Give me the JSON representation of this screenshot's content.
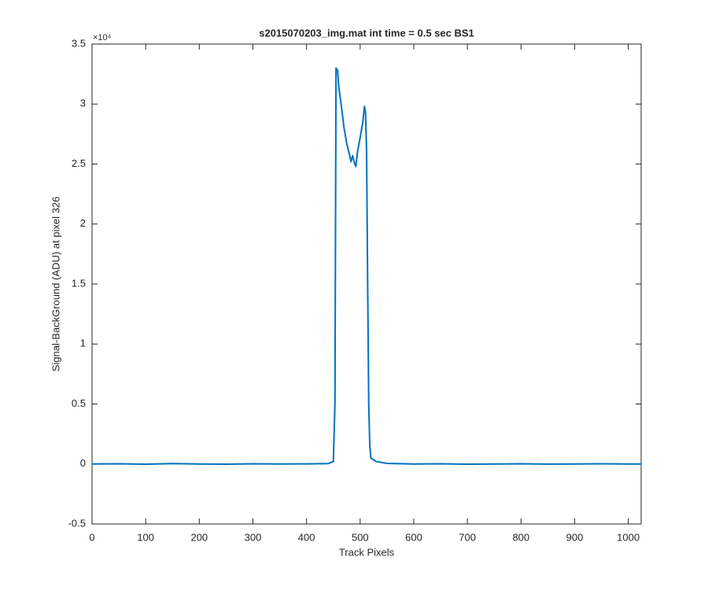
{
  "chart_data": {
    "type": "line",
    "title": "s2015070203_img.mat int time = 0.5 sec   BS1",
    "x_label": "Track Pixels",
    "y_label": "Signal-BackGround (ADU) at pixel 326",
    "y_exponent_label": "×10⁴",
    "x": [
      0,
      50,
      100,
      150,
      200,
      250,
      300,
      350,
      400,
      440,
      450,
      453,
      455,
      458,
      460,
      465,
      470,
      475,
      480,
      483,
      486,
      490,
      492,
      495,
      500,
      505,
      508,
      510,
      512,
      514,
      516,
      518,
      520,
      530,
      550,
      600,
      650,
      700,
      750,
      800,
      850,
      900,
      950,
      1000,
      1024
    ],
    "series": [
      {
        "name": "BS1",
        "color": "#0072bd",
        "values": [
          0,
          0.002,
          -0.002,
          0.003,
          0,
          -0.002,
          0.002,
          0,
          0.001,
          0.003,
          0.02,
          0.5,
          3.3,
          3.28,
          3.15,
          2.98,
          2.8,
          2.67,
          2.58,
          2.52,
          2.57,
          2.5,
          2.48,
          2.6,
          2.72,
          2.85,
          2.98,
          2.93,
          2.6,
          1.5,
          0.5,
          0.15,
          0.05,
          0.02,
          0.005,
          0,
          0.002,
          -0.002,
          0,
          0.002,
          -0.001,
          0,
          0.002,
          0,
          0
        ]
      }
    ],
    "xlim": [
      0,
      1024
    ],
    "xticks": [
      0,
      100,
      200,
      300,
      400,
      500,
      600,
      700,
      800,
      900,
      1000
    ],
    "ylim": [
      -0.5,
      3.5
    ],
    "yticks": [
      -0.5,
      0,
      0.5,
      1,
      1.5,
      2,
      2.5,
      3,
      3.5
    ],
    "grid": false
  }
}
